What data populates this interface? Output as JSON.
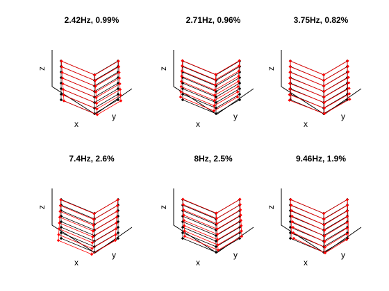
{
  "colors": {
    "deformed": "#ff0000",
    "undeformed": "#000000",
    "axes": "#000000",
    "background": "#ffffff"
  },
  "chart_data": [
    {
      "type": "line",
      "title": "2.42Hz, 0.99%",
      "xlabel": "x",
      "ylabel": "y",
      "zlabel": "z",
      "grid": false,
      "floors": 8,
      "markers": "diamond",
      "style": "3d-frame"
    },
    {
      "type": "line",
      "title": "2.71Hz, 0.96%",
      "xlabel": "x",
      "ylabel": "y",
      "zlabel": "z",
      "grid": false,
      "floors": 8,
      "markers": "diamond",
      "style": "3d-frame"
    },
    {
      "type": "line",
      "title": "3.75Hz, 0.82%",
      "xlabel": "x",
      "ylabel": "y",
      "zlabel": "z",
      "grid": false,
      "floors": 8,
      "markers": "diamond",
      "style": "3d-frame"
    },
    {
      "type": "line",
      "title": "7.4Hz, 2.6%",
      "xlabel": "x",
      "ylabel": "y",
      "zlabel": "z",
      "grid": false,
      "floors": 8,
      "markers": "diamond",
      "style": "3d-frame"
    },
    {
      "type": "line",
      "title": "8Hz, 2.5%",
      "xlabel": "x",
      "ylabel": "y",
      "zlabel": "z",
      "grid": false,
      "floors": 8,
      "markers": "diamond",
      "style": "3d-frame"
    },
    {
      "type": "line",
      "title": "9.46Hz, 1.9%",
      "xlabel": "x",
      "ylabel": "y",
      "zlabel": "z",
      "grid": false,
      "floors": 8,
      "markers": "diamond",
      "style": "3d-frame"
    }
  ]
}
